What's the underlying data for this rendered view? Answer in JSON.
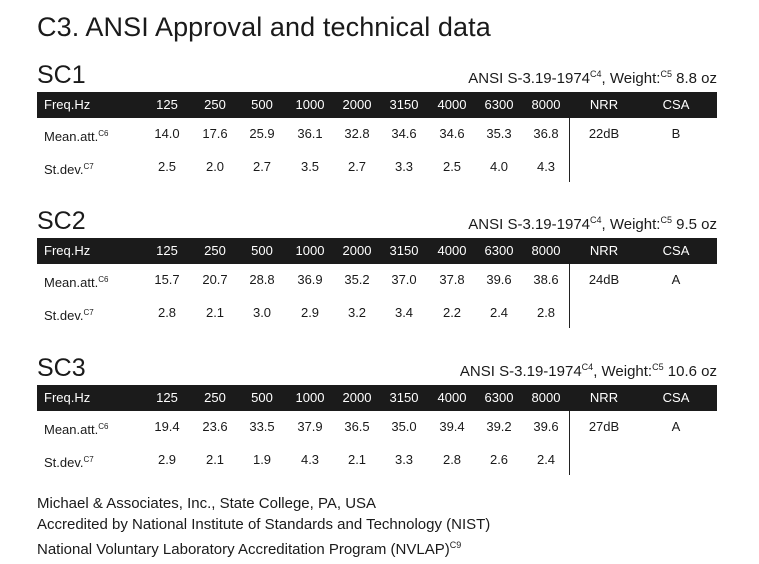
{
  "page_title": "C3. ANSI Approval and technical data",
  "header_labels": {
    "freq": "Freq.Hz",
    "frequencies": [
      "125",
      "250",
      "500",
      "1000",
      "2000",
      "3150",
      "4000",
      "6300",
      "8000"
    ],
    "nrr": "NRR",
    "csa": "CSA"
  },
  "row_labels": {
    "mean": "Mean.att.",
    "mean_ref": "C6",
    "stdev": "St.dev.",
    "stdev_ref": "C7"
  },
  "sections": [
    {
      "name": "SC1",
      "standard": "ANSI S-3.19-1974",
      "standard_ref": "C4",
      "weight_label": ", Weight:",
      "weight_ref": "C5",
      "weight_value": " 8.8 oz",
      "mean": [
        "14.0",
        "17.6",
        "25.9",
        "36.1",
        "32.8",
        "34.6",
        "34.6",
        "35.3",
        "36.8"
      ],
      "stdev": [
        "2.5",
        "2.0",
        "2.7",
        "3.5",
        "2.7",
        "3.3",
        "2.5",
        "4.0",
        "4.3"
      ],
      "nrr": "22dB",
      "csa": "B"
    },
    {
      "name": "SC2",
      "standard": "ANSI S-3.19-1974",
      "standard_ref": "C4",
      "weight_label": ", Weight:",
      "weight_ref": "C5",
      "weight_value": " 9.5 oz",
      "mean": [
        "15.7",
        "20.7",
        "28.8",
        "36.9",
        "35.2",
        "37.0",
        "37.8",
        "39.6",
        "38.6"
      ],
      "stdev": [
        "2.8",
        "2.1",
        "3.0",
        "2.9",
        "3.2",
        "3.4",
        "2.2",
        "2.4",
        "2.8"
      ],
      "nrr": "24dB",
      "csa": "A"
    },
    {
      "name": "SC3",
      "standard": "ANSI S-3.19-1974",
      "standard_ref": "C4",
      "weight_label": ", Weight:",
      "weight_ref": "C5",
      "weight_value": " 10.6 oz",
      "mean": [
        "19.4",
        "23.6",
        "33.5",
        "37.9",
        "36.5",
        "35.0",
        "39.4",
        "39.2",
        "39.6"
      ],
      "stdev": [
        "2.9",
        "2.1",
        "1.9",
        "4.3",
        "2.1",
        "3.3",
        "2.8",
        "2.6",
        "2.4"
      ],
      "nrr": "27dB",
      "csa": "A"
    }
  ],
  "footer": {
    "line1": "Michael & Associates, Inc., State College, PA, USA",
    "line2": "Accredited by National Institute of Standards and Technology (NIST)",
    "line3": "National Voluntary Laboratory Accreditation Program (NVLAP)",
    "line3_ref": "C9"
  }
}
